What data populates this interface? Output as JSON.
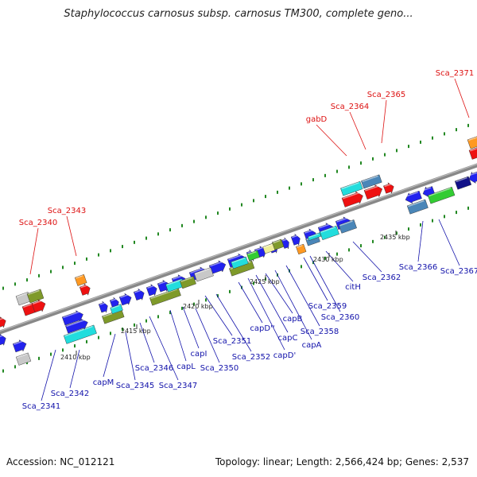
{
  "title": "Staphylococcus carnosus subsp. carnosus TM300, complete geno...",
  "footer": {
    "accession": "Accession: NC_012121",
    "summary": "Topology: linear; Length: 2,566,424 bp; Genes: 2,537"
  },
  "colors": {
    "red": "#ee1111",
    "blue": "#2222ee",
    "navy": "#111188",
    "cyan": "#22dddd",
    "steel": "#4a86b8",
    "olive": "#7f9a2a",
    "green": "#33cc33",
    "orange": "#ff9922",
    "gray": "#c8c8c8",
    "beige": "#eeee99",
    "backbone": "#888888",
    "tick": "#228822",
    "label_red": "#dd1111",
    "label_blue": "#1111aa"
  },
  "ticks": [
    "2410 kbp",
    "2415 kbp",
    "2420 kbp",
    "2425 kbp",
    "2430 kbp",
    "2435 kbp"
  ],
  "labels_top": [
    "Sca_2340",
    "Sca_2343",
    "gabD",
    "Sca_2364",
    "Sca_2365",
    "Sca_2371"
  ],
  "labels_bottom": [
    "Sca_2341",
    "Sca_2342",
    "capM",
    "Sca_2345",
    "Sca_2346",
    "Sca_2347",
    "capL",
    "capI",
    "Sca_2350",
    "Sca_2351",
    "Sca_2352",
    "capD''",
    "capD'",
    "capC",
    "capB",
    "capA",
    "Sca_2358",
    "Sca_2359",
    "Sca_2360",
    "citH",
    "Sca_2362",
    "Sca_2366",
    "Sca_2367"
  ]
}
